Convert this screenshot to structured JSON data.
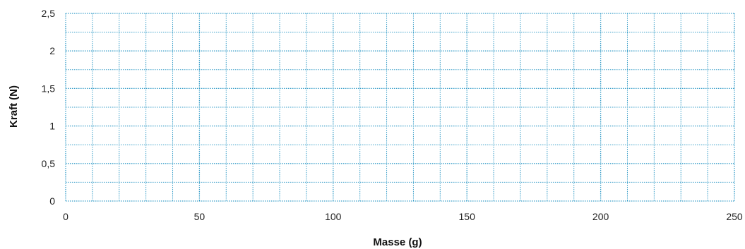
{
  "chart_data": {
    "type": "scatter",
    "xlabel": "Masse (g)",
    "ylabel": "Kraft (N)",
    "xlim": [
      0,
      250
    ],
    "ylim": [
      0,
      2.5
    ],
    "x_ticks": [
      "0",
      "50",
      "100",
      "150",
      "200",
      "250"
    ],
    "y_ticks": [
      "0",
      "0,5",
      "1",
      "1,5",
      "2",
      "2,5"
    ],
    "x_minor_step": 10,
    "y_minor_step": 0.25,
    "grid": true,
    "grid_color": "#3a9fc9",
    "series": []
  }
}
